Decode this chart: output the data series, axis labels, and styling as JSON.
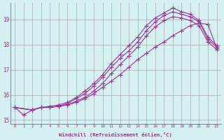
{
  "xlabel": "Windchill (Refroidissement éolien,°C)",
  "ylabel": "",
  "background_color": "#d4f0f0",
  "grid_color": "#aaaaaa",
  "line_color": "#993399",
  "marker": "+",
  "xlim": [
    -0.5,
    23.5
  ],
  "ylim": [
    14.85,
    19.65
  ],
  "xticks": [
    0,
    1,
    2,
    3,
    4,
    5,
    6,
    7,
    8,
    9,
    10,
    11,
    12,
    13,
    14,
    15,
    16,
    17,
    18,
    19,
    20,
    21,
    22,
    23
  ],
  "yticks": [
    15,
    16,
    17,
    18,
    19
  ],
  "lines": [
    {
      "x": [
        0,
        1,
        2,
        3,
        4,
        5,
        6,
        7,
        8,
        9,
        10,
        11,
        12,
        13,
        14,
        15,
        16,
        17,
        18,
        19,
        20,
        21,
        22,
        23
      ],
      "y": [
        15.5,
        15.2,
        15.4,
        15.5,
        15.5,
        15.55,
        15.6,
        15.7,
        15.85,
        16.05,
        16.3,
        16.55,
        16.8,
        17.1,
        17.4,
        17.65,
        17.9,
        18.1,
        18.35,
        18.55,
        18.75,
        18.85,
        18.8,
        17.85
      ]
    },
    {
      "x": [
        0,
        2,
        3,
        4,
        5,
        6,
        7,
        8,
        9,
        10,
        11,
        12,
        13,
        14,
        15,
        16,
        17,
        18,
        19,
        20,
        21,
        22,
        23
      ],
      "y": [
        15.5,
        15.4,
        15.5,
        15.5,
        15.55,
        15.65,
        15.85,
        16.05,
        16.35,
        16.7,
        17.1,
        17.45,
        17.75,
        18.1,
        18.55,
        18.9,
        19.15,
        19.3,
        19.2,
        19.1,
        18.9,
        18.2,
        17.9
      ]
    },
    {
      "x": [
        0,
        2,
        3,
        4,
        5,
        6,
        7,
        8,
        9,
        10,
        11,
        12,
        13,
        14,
        15,
        16,
        17,
        18,
        19,
        20,
        21,
        22,
        23
      ],
      "y": [
        15.5,
        15.4,
        15.5,
        15.55,
        15.6,
        15.7,
        15.9,
        16.15,
        16.45,
        16.8,
        17.25,
        17.6,
        17.95,
        18.3,
        18.75,
        19.05,
        19.25,
        19.45,
        19.3,
        19.2,
        18.95,
        18.3,
        17.95
      ]
    },
    {
      "x": [
        0,
        2,
        3,
        4,
        5,
        6,
        7,
        8,
        9,
        10,
        11,
        12,
        13,
        14,
        15,
        16,
        17,
        18,
        19,
        20,
        21,
        22,
        23
      ],
      "y": [
        15.5,
        15.4,
        15.5,
        15.5,
        15.55,
        15.6,
        15.75,
        15.9,
        16.15,
        16.45,
        16.85,
        17.2,
        17.55,
        17.9,
        18.35,
        18.7,
        18.95,
        19.1,
        19.05,
        18.95,
        18.75,
        18.1,
        17.8
      ]
    }
  ]
}
